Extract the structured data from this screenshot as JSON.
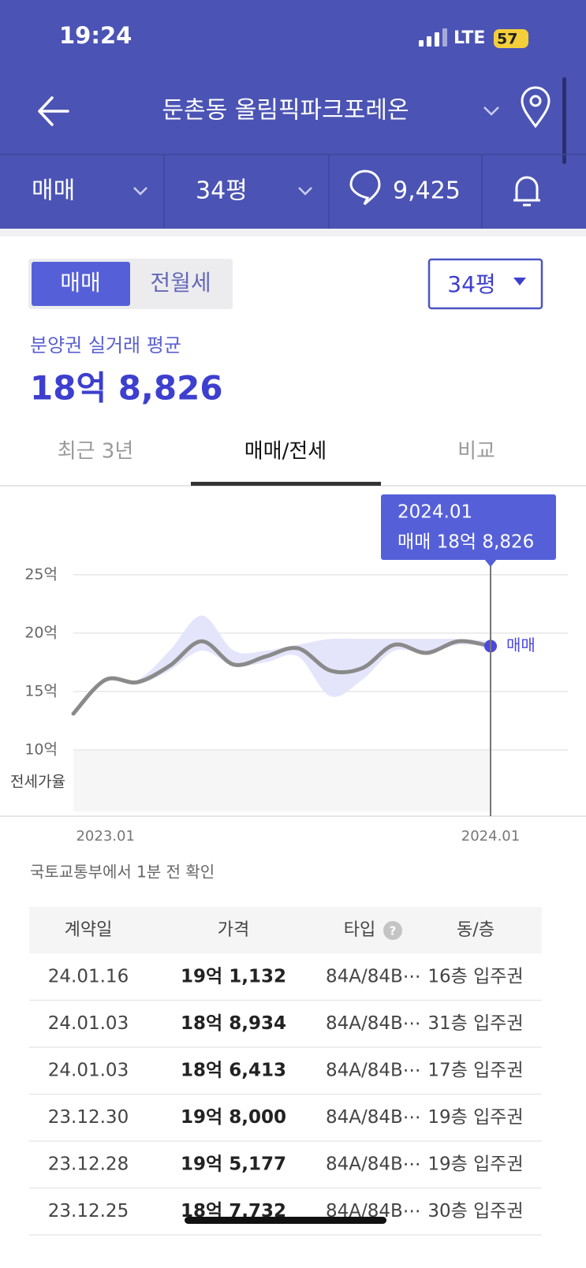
{
  "status": {
    "time": "19:24",
    "network": "LTE",
    "battery": "57"
  },
  "header": {
    "title": "둔촌동 올림픽파크포레온"
  },
  "filters": {
    "trade": "매매",
    "size": "34평",
    "comments": "9,425"
  },
  "toggle": {
    "options": [
      "매매",
      "전월세"
    ],
    "size_select": "34평"
  },
  "summary": {
    "label": "분양권 실거래 평균",
    "value": "18억 8,826"
  },
  "tabs": [
    "최근 3년",
    "매매/전세",
    "비교"
  ],
  "chart": {
    "type": "line",
    "categories": [
      null,
      "2023.01",
      null,
      null,
      null,
      null,
      null,
      null,
      null,
      null,
      null,
      null,
      null,
      "2024.01"
    ],
    "series": [
      {
        "name": "매매",
        "color": "#8a8a8a",
        "values": [
          13.1,
          16.0,
          15.8,
          17.2,
          19.3,
          17.3,
          18.0,
          18.7,
          16.8,
          17.0,
          19.0,
          18.3,
          19.3,
          18.8826
        ]
      }
    ],
    "band": {
      "color": "#e4e4fb",
      "upper": [
        13.1,
        16.0,
        16.0,
        18.5,
        21.5,
        18.5,
        18.5,
        19.0,
        19.5,
        19.5,
        19.5,
        19.5,
        19.5,
        19.3
      ],
      "lower": [
        13.1,
        15.8,
        15.6,
        16.8,
        18.5,
        17.2,
        17.5,
        18.0,
        14.6,
        16.0,
        18.5,
        18.2,
        19.0,
        18.8
      ]
    },
    "ylim": [
      5,
      26
    ],
    "yticks": [
      {
        "value": 10,
        "label": "10억"
      },
      {
        "value": 15,
        "label": "15억"
      },
      {
        "value": 20,
        "label": "20억"
      },
      {
        "value": 25,
        "label": "25억"
      }
    ],
    "grid": true,
    "jeonse_label": "전세가율",
    "tooltip": {
      "date": "2024.01",
      "text": "매매 18억 8,826"
    }
  },
  "source": "국토교통부에서 1분 전 확인",
  "table": {
    "header": [
      "계약일",
      "가격",
      "타입",
      "동/층"
    ],
    "rows": [
      [
        "24.01.16",
        "19억 1,132",
        "84A/84B⋯",
        "16층 입주권"
      ],
      [
        "24.01.03",
        "18억 8,934",
        "84A/84B⋯",
        "31층 입주권"
      ],
      [
        "24.01.03",
        "18억 6,413",
        "84A/84B⋯",
        "17층 입주권"
      ],
      [
        "23.12.30",
        "19억 8,000",
        "84A/84B⋯",
        "19층 입주권"
      ],
      [
        "23.12.28",
        "19억 5,177",
        "84A/84B⋯",
        "19층 입주권"
      ],
      [
        "23.12.25",
        "18억 7,732",
        "84A/84B⋯",
        "30층 입주권"
      ]
    ]
  }
}
